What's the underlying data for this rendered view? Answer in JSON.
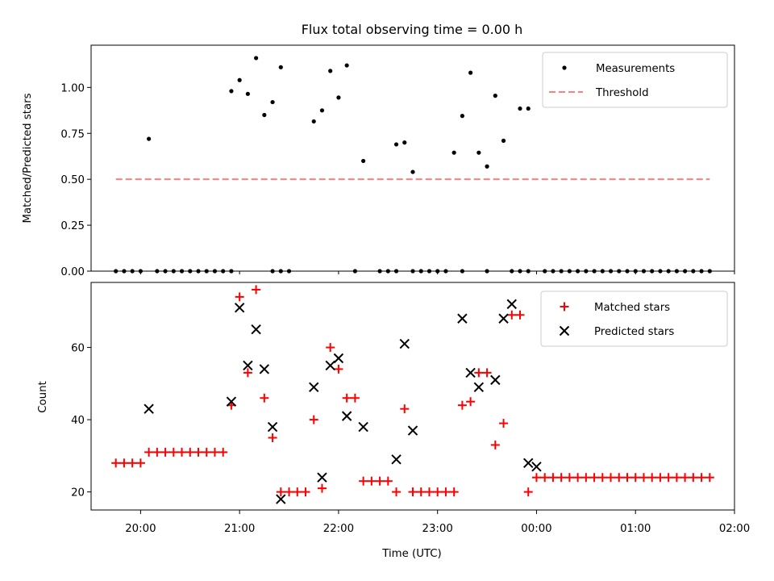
{
  "chart_data": [
    {
      "type": "scatter",
      "title": "Flux total observing time = 0.00 h",
      "xlabel": "",
      "ylabel": "Matched/Predicted stars",
      "ylim": [
        0,
        1.23
      ],
      "yticks": [
        "0.00",
        "0.25",
        "0.50",
        "0.75",
        "1.00"
      ],
      "legend_position": "top-right",
      "series": [
        {
          "name": "Measurements",
          "marker": "dot",
          "color": "#000000",
          "x": [
            "19:45",
            "19:50",
            "19:55",
            "20:00",
            "20:10",
            "20:15",
            "20:20",
            "20:25",
            "20:30",
            "20:35",
            "20:40",
            "20:45",
            "20:50",
            "20:55",
            "21:20",
            "21:25",
            "21:30",
            "22:10",
            "22:25",
            "22:30",
            "22:35",
            "22:45",
            "22:50",
            "22:55",
            "23:00",
            "23:05",
            "23:15",
            "23:30",
            "23:45",
            "23:50",
            "23:55",
            "00:05",
            "00:10",
            "00:15",
            "00:20",
            "00:25",
            "00:30",
            "00:35",
            "00:40",
            "00:45",
            "00:50",
            "00:55",
            "01:00",
            "01:05",
            "01:10",
            "01:15",
            "01:20",
            "01:25",
            "01:30",
            "01:35",
            "01:40",
            "01:45",
            "20:05",
            "20:55",
            "21:00",
            "21:05",
            "21:10",
            "21:15",
            "21:20",
            "21:25",
            "21:45",
            "21:50",
            "21:55",
            "22:00",
            "22:05",
            "22:15",
            "22:35",
            "22:40",
            "22:45",
            "23:10",
            "23:15",
            "23:20",
            "23:25",
            "23:30",
            "23:35",
            "23:40",
            "23:50",
            "23:55"
          ],
          "y": [
            0,
            0,
            0,
            0,
            0,
            0,
            0,
            0,
            0,
            0,
            0,
            0,
            0,
            0,
            0,
            0,
            0,
            0,
            0,
            0,
            0,
            0,
            0,
            0,
            0,
            0,
            0,
            0,
            0,
            0,
            0,
            0,
            0,
            0,
            0,
            0,
            0,
            0,
            0,
            0,
            0,
            0,
            0,
            0,
            0,
            0,
            0,
            0,
            0,
            0,
            0,
            0,
            0.72,
            0.98,
            1.04,
            0.965,
            1.16,
            0.85,
            0.92,
            1.11,
            0.815,
            0.875,
            1.09,
            0.945,
            1.12,
            0.6,
            0.69,
            0.7,
            0.54,
            0.645,
            0.845,
            1.08,
            0.645,
            0.57,
            0.955,
            0.71,
            0.885,
            0.885
          ]
        },
        {
          "name": "Threshold",
          "marker": "dashed-line",
          "color": "#ff7f7f",
          "x": [
            "19:45",
            "01:45"
          ],
          "y": [
            0.5,
            0.5
          ]
        }
      ]
    },
    {
      "type": "scatter",
      "title": "",
      "xlabel": "Time (UTC)",
      "ylabel": "Count",
      "ylim": [
        15,
        78
      ],
      "yticks": [
        "20",
        "40",
        "60"
      ],
      "xticks": [
        "20:00",
        "21:00",
        "22:00",
        "23:00",
        "00:00",
        "01:00",
        "02:00"
      ],
      "xrange": [
        "19:30",
        "02:00"
      ],
      "legend_position": "top-right",
      "series": [
        {
          "name": "Matched stars",
          "marker": "plus",
          "color": "#ff0000",
          "x": [
            "19:45",
            "19:50",
            "19:55",
            "20:00",
            "20:05",
            "20:10",
            "20:15",
            "20:20",
            "20:25",
            "20:30",
            "20:35",
            "20:40",
            "20:45",
            "20:50",
            "20:55",
            "21:00",
            "21:05",
            "21:10",
            "21:15",
            "21:20",
            "21:25",
            "21:30",
            "21:35",
            "21:40",
            "21:45",
            "21:50",
            "21:55",
            "22:00",
            "22:05",
            "22:10",
            "22:15",
            "22:20",
            "22:25",
            "22:30",
            "22:35",
            "22:40",
            "22:45",
            "22:50",
            "22:55",
            "23:00",
            "23:05",
            "23:10",
            "23:15",
            "23:20",
            "23:25",
            "23:30",
            "23:35",
            "23:40",
            "23:45",
            "23:50",
            "23:55",
            "00:00",
            "00:05",
            "00:10",
            "00:15",
            "00:20",
            "00:25",
            "00:30",
            "00:35",
            "00:40",
            "00:45",
            "00:50",
            "00:55",
            "01:00",
            "01:05",
            "01:10",
            "01:15",
            "01:20",
            "01:25",
            "01:30",
            "01:35",
            "01:40",
            "01:45"
          ],
          "y": [
            28,
            28,
            28,
            28,
            31,
            31,
            31,
            31,
            31,
            31,
            31,
            31,
            31,
            31,
            44,
            74,
            53,
            76,
            46,
            35,
            20,
            20,
            20,
            20,
            40,
            21,
            60,
            54,
            46,
            46,
            23,
            23,
            23,
            23,
            20,
            43,
            20,
            20,
            20,
            20,
            20,
            20,
            44,
            45,
            53,
            53,
            33,
            39,
            69,
            69,
            20,
            24,
            24,
            24,
            24,
            24,
            24,
            24,
            24,
            24,
            24,
            24,
            24,
            24,
            24,
            24,
            24,
            24,
            24,
            24,
            24,
            24,
            24
          ]
        },
        {
          "name": "Predicted stars",
          "marker": "x",
          "color": "#000000",
          "x": [
            "20:05",
            "20:55",
            "21:00",
            "21:05",
            "21:10",
            "21:15",
            "21:20",
            "21:25",
            "21:45",
            "21:50",
            "21:55",
            "22:00",
            "22:05",
            "22:15",
            "22:35",
            "22:40",
            "22:45",
            "23:15",
            "23:20",
            "23:25",
            "23:35",
            "23:40",
            "23:45",
            "23:55",
            "00:00"
          ],
          "y": [
            43,
            45,
            71,
            55,
            65,
            54,
            38,
            18,
            49,
            24,
            55,
            57,
            41,
            38,
            29,
            61,
            37,
            68,
            53,
            49,
            51,
            68,
            72,
            28,
            27
          ]
        }
      ]
    }
  ]
}
